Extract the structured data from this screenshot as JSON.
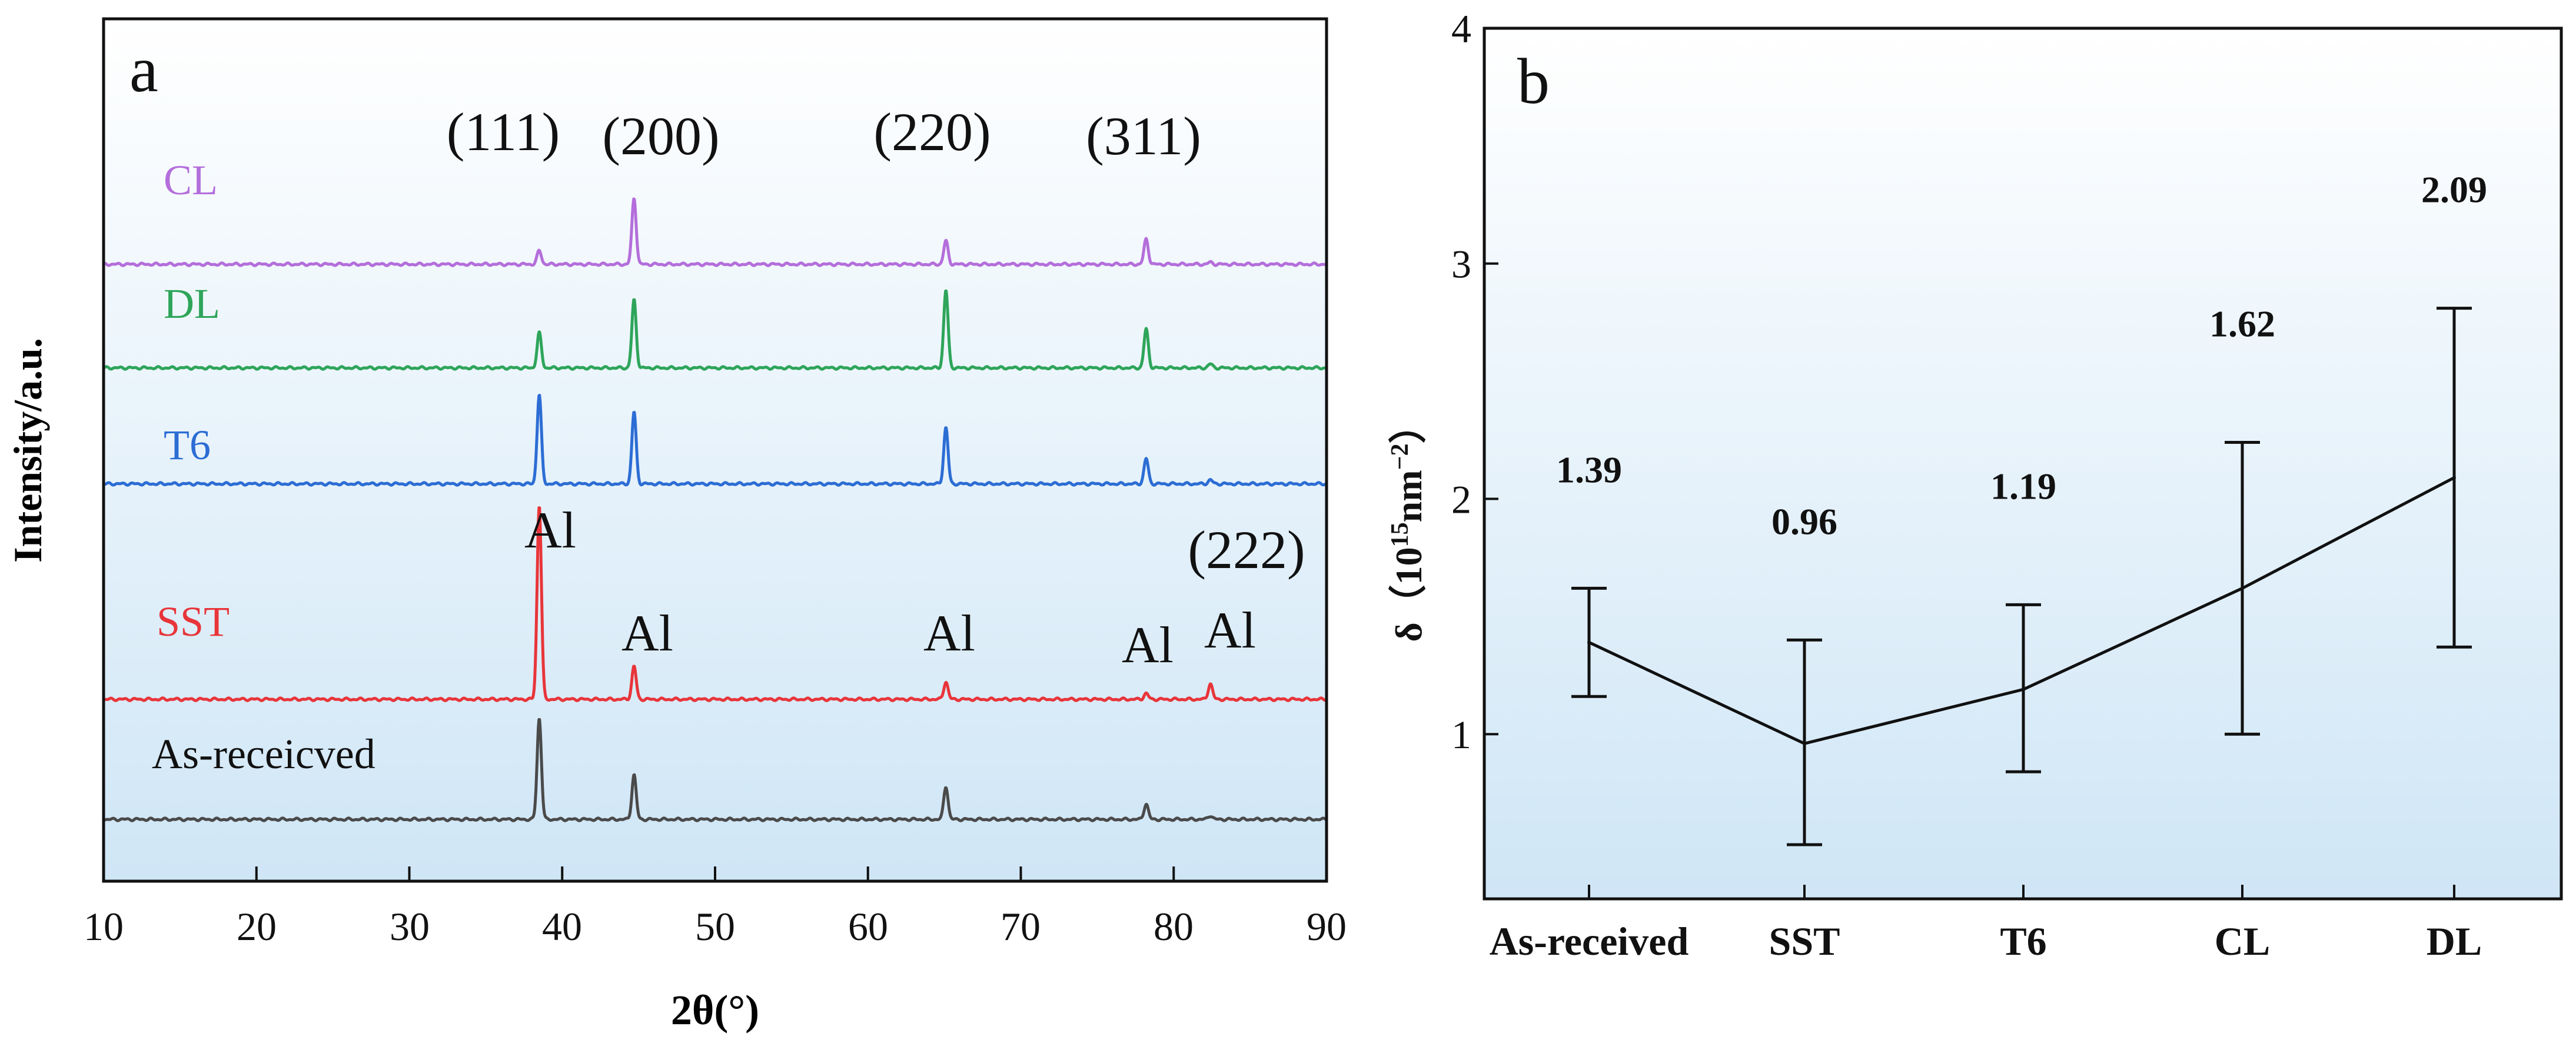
{
  "chart_data": [
    {
      "panel": "a",
      "type": "line",
      "title": "",
      "xlabel": "2θ(°)",
      "ylabel": "Intensity/a.u.",
      "xlim": [
        10,
        90
      ],
      "xticks": [
        10,
        20,
        30,
        40,
        50,
        60,
        70,
        80,
        90
      ],
      "grid": false,
      "background": "light-blue gradient",
      "series": [
        {
          "name": "As-receicved",
          "color": "#4a4a4a",
          "peaks": [
            {
              "x": 38.5,
              "height": 0.52
            },
            {
              "x": 44.7,
              "height": 0.23
            },
            {
              "x": 65.1,
              "height": 0.17
            },
            {
              "x": 78.2,
              "height": 0.08
            },
            {
              "x": 82.4,
              "height": 0.02
            }
          ]
        },
        {
          "name": "SST",
          "color": "#e8353a",
          "peaks": [
            {
              "x": 38.5,
              "height": 1.0
            },
            {
              "x": 44.7,
              "height": 0.17
            },
            {
              "x": 65.1,
              "height": 0.09
            },
            {
              "x": 78.2,
              "height": 0.03
            },
            {
              "x": 82.4,
              "height": 0.08
            }
          ]
        },
        {
          "name": "T6",
          "color": "#2c6dd4",
          "peaks": [
            {
              "x": 38.5,
              "height": 0.46
            },
            {
              "x": 44.7,
              "height": 0.37
            },
            {
              "x": 65.1,
              "height": 0.29
            },
            {
              "x": 78.2,
              "height": 0.13
            },
            {
              "x": 82.4,
              "height": 0.02
            }
          ]
        },
        {
          "name": "DL",
          "color": "#2ea55a",
          "peaks": [
            {
              "x": 38.5,
              "height": 0.18
            },
            {
              "x": 44.7,
              "height": 0.35
            },
            {
              "x": 65.1,
              "height": 0.4
            },
            {
              "x": 78.2,
              "height": 0.2
            },
            {
              "x": 82.4,
              "height": 0.02
            }
          ]
        },
        {
          "name": "CL",
          "color": "#b46edb",
          "peaks": [
            {
              "x": 38.5,
              "height": 0.07
            },
            {
              "x": 44.7,
              "height": 0.34
            },
            {
              "x": 65.1,
              "height": 0.12
            },
            {
              "x": 78.2,
              "height": 0.13
            },
            {
              "x": 82.4,
              "height": 0.01
            }
          ]
        }
      ],
      "peak_labels": [
        "(111)",
        "(200)",
        "(220)",
        "(311)",
        "(222)"
      ],
      "phase_labels": [
        "Al",
        "Al",
        "Al",
        "Al",
        "Al"
      ]
    },
    {
      "panel": "b",
      "type": "line",
      "title": "",
      "xlabel": "",
      "ylabel": "δ（10¹⁵nm⁻²）",
      "ylim": [
        0.3,
        4
      ],
      "yticks": [
        1,
        2,
        3,
        4
      ],
      "grid": false,
      "categories": [
        "As-received",
        "SST",
        "T6",
        "CL",
        "DL"
      ],
      "values": [
        1.39,
        0.96,
        1.19,
        1.62,
        2.09
      ],
      "value_labels": [
        "1.39",
        "0.96",
        "1.19",
        "1.62",
        "2.09"
      ],
      "error_low": [
        1.16,
        0.53,
        0.84,
        1.0,
        1.37
      ],
      "error_high": [
        1.62,
        1.4,
        1.55,
        2.24,
        2.81
      ],
      "line_color": "#111111"
    }
  ],
  "panel_a": {
    "letter": "a",
    "xlabel": "2θ(°)",
    "ylabel": "Intensity/a.u.",
    "tick_labels": [
      "10",
      "20",
      "30",
      "40",
      "50",
      "60",
      "70",
      "80",
      "90"
    ],
    "peak_labels": [
      "(111)",
      "(200)",
      "(220)",
      "(311)",
      "(222)"
    ],
    "phase_labels": [
      "Al",
      "Al",
      "Al",
      "Al",
      "Al"
    ],
    "series_labels": [
      "CL",
      "DL",
      "T6",
      "SST",
      "As-receicved"
    ]
  },
  "panel_b": {
    "letter": "b",
    "ylabel_main": "δ（10",
    "ylabel_sup1": "15",
    "ylabel_mid": "nm",
    "ylabel_sup2": "−2",
    "ylabel_end": "）",
    "tick_labels": [
      "1",
      "2",
      "3",
      "4"
    ],
    "categories": [
      "As-received",
      "SST",
      "T6",
      "CL",
      "DL"
    ],
    "value_labels": [
      "1.39",
      "0.96",
      "1.19",
      "1.62",
      "2.09"
    ]
  }
}
